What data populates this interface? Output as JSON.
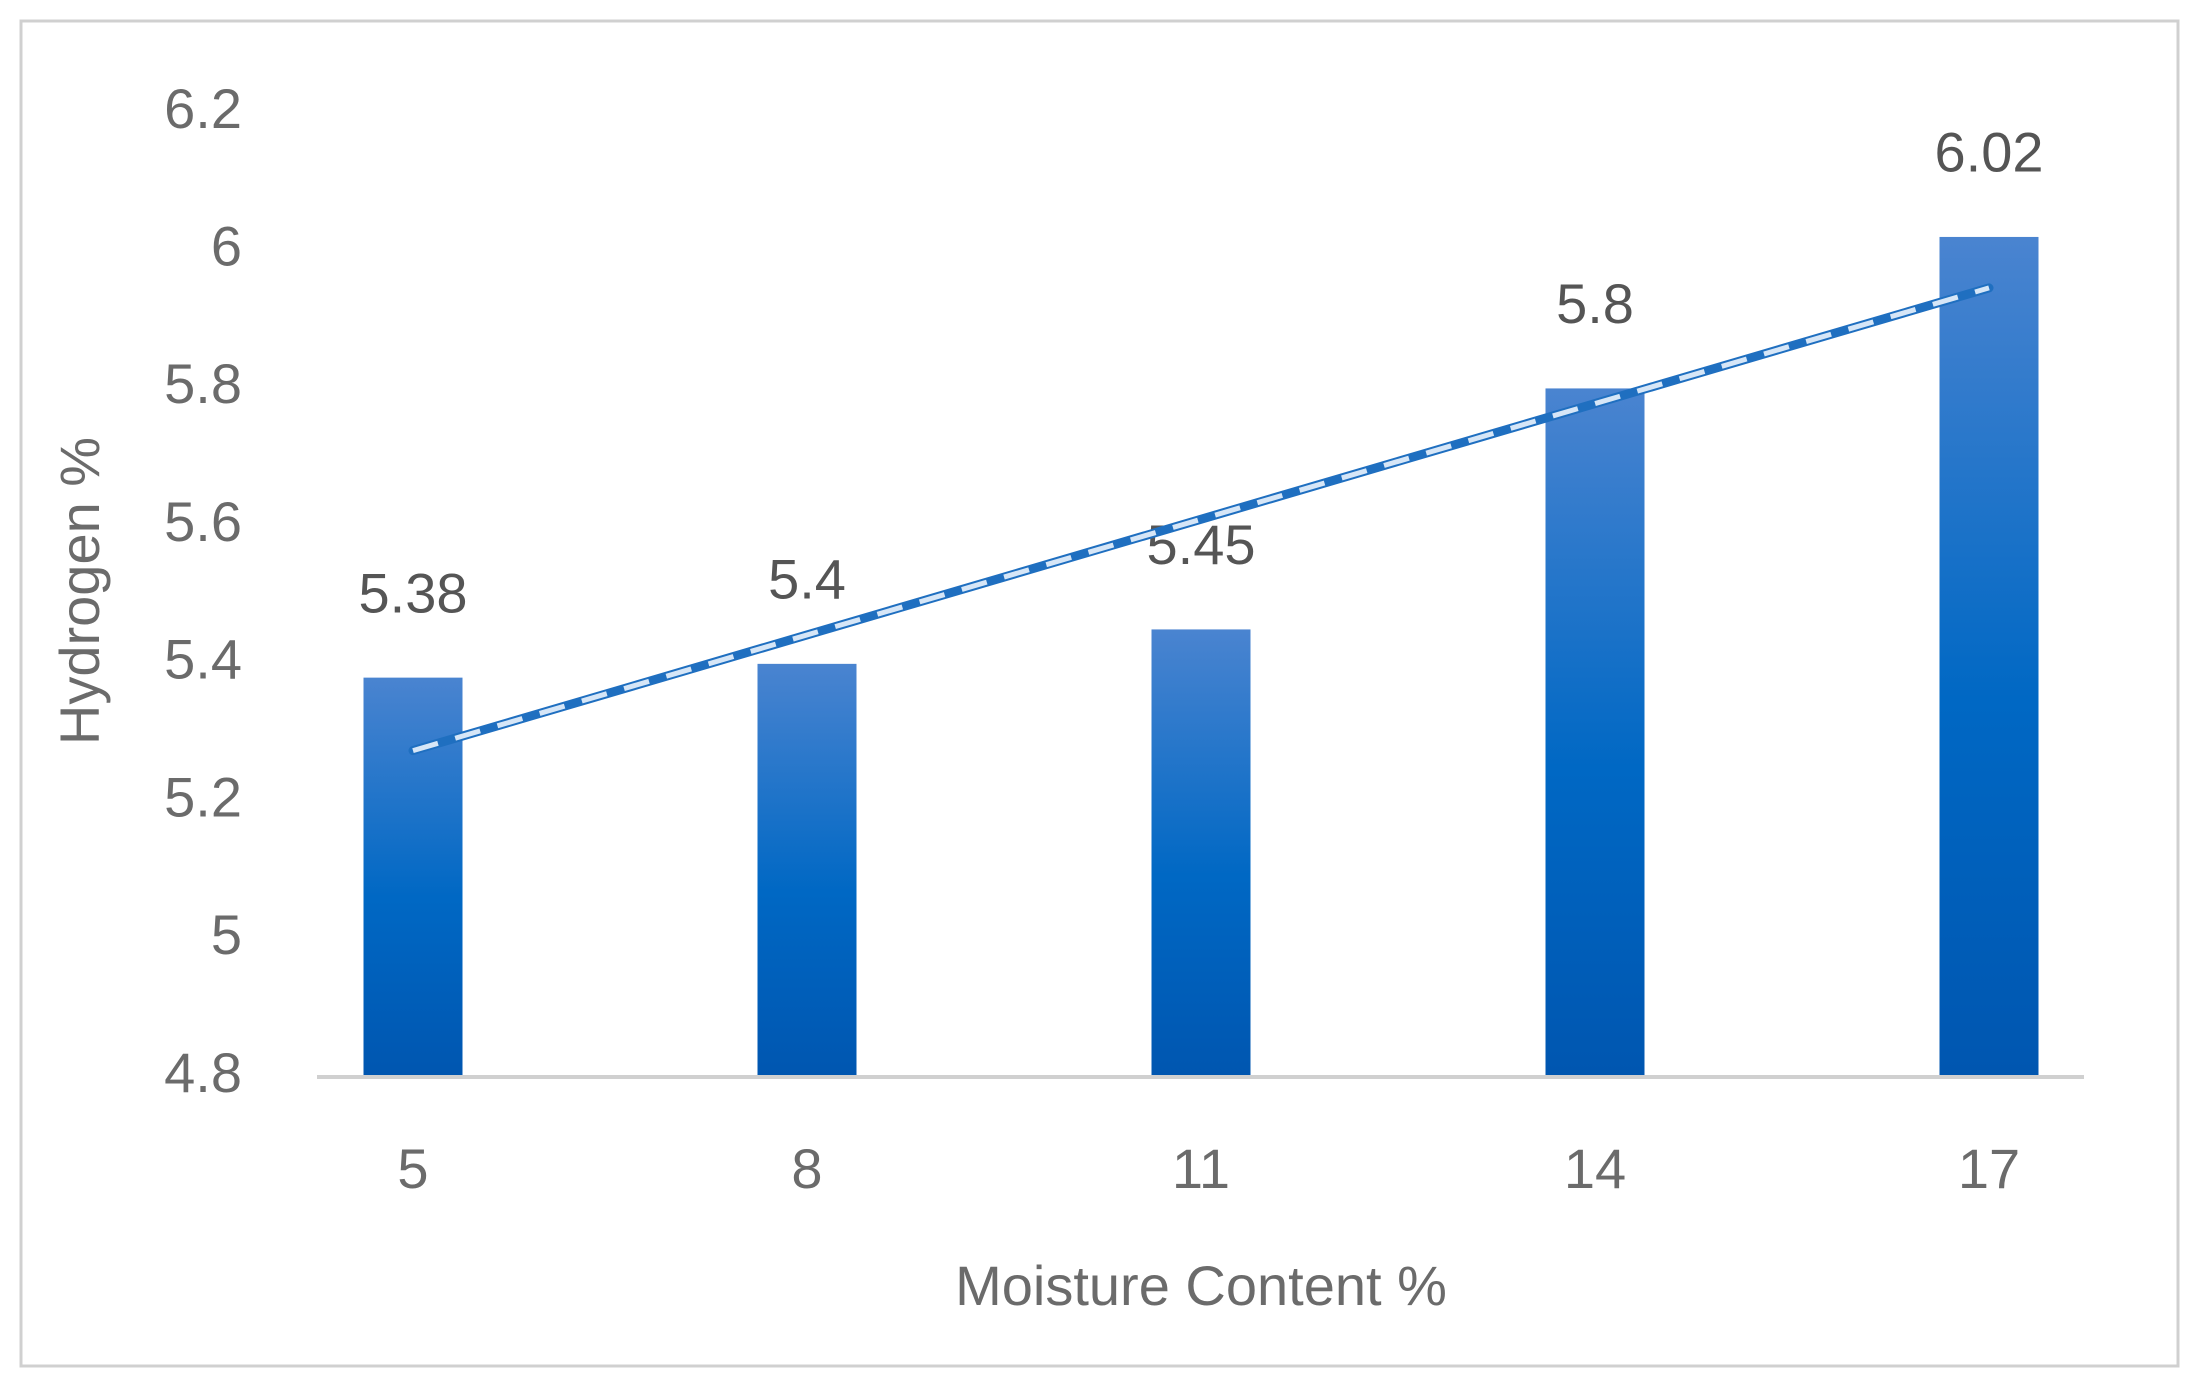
{
  "chart_data": {
    "type": "bar",
    "x_label": "Moisture Content  %",
    "y_label": "Hydrogen  %",
    "categories": [
      "5",
      "8",
      "11",
      "14",
      "17"
    ],
    "values": [
      5.38,
      5.4,
      5.45,
      5.8,
      6.02
    ],
    "color": "#0068c4",
    "ylim": [
      4.8,
      6.2
    ],
    "yticks": [
      4.8,
      5,
      5.2,
      5.4,
      5.6,
      5.8,
      6,
      6.2
    ],
    "grid": false,
    "trendline": "linear",
    "trendline_color": "#1f6fc0"
  }
}
